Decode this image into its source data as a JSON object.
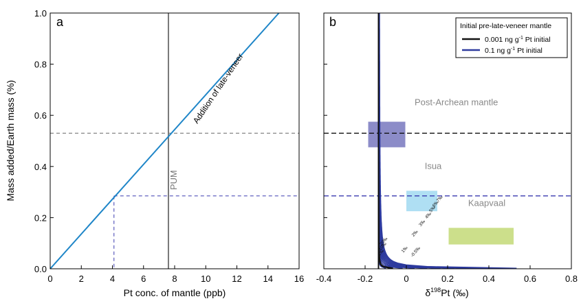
{
  "chart_data": [
    {
      "type": "line",
      "panel_label": "a",
      "xlabel": "Pt conc. of mantle (ppb)",
      "ylabel": "Mass added/Earth mass (%)",
      "xlim": [
        0,
        16
      ],
      "ylim": [
        0,
        1.0
      ],
      "xticks": [
        0,
        2,
        4,
        6,
        8,
        10,
        12,
        14,
        16
      ],
      "yticks": [
        0.0,
        0.2,
        0.4,
        0.6,
        0.8,
        1.0
      ],
      "ytick_labels": [
        "0.0",
        "0.2",
        "0.4",
        "0.6",
        "0.8",
        "1.0"
      ],
      "series": [
        {
          "name": "Addition of late-veneer",
          "color": "#1f86c8",
          "x": [
            0,
            14.7
          ],
          "y": [
            0,
            1.0
          ]
        }
      ],
      "pum": {
        "label": "PUM",
        "x": 7.6,
        "color": "#777777"
      },
      "hlines": [
        {
          "y": 0.53,
          "color": "#666666",
          "style": "dashed"
        },
        {
          "y": 0.285,
          "color": "#3a3ab0",
          "style": "dashed",
          "x_start": 4.1
        }
      ],
      "vlines": [
        {
          "x": 4.1,
          "y_end": 0.285,
          "color": "#3a3ab0",
          "style": "dashed"
        }
      ],
      "annotations": [
        "Addition of late-veneer",
        "PUM"
      ]
    },
    {
      "type": "line",
      "panel_label": "b",
      "xlabel_main": "δ",
      "xlabel_sup": "198",
      "xlabel_rest": "Pt (‰)",
      "xlim": [
        -0.4,
        0.8
      ],
      "ylim": [
        0,
        1.0
      ],
      "xticks": [
        -0.4,
        -0.2,
        0,
        0.2,
        0.4,
        0.6,
        0.8
      ],
      "xtick_labels": [
        "-0.4",
        "-0.2",
        "0",
        "0.2",
        "0.4",
        "0.6",
        "0.8"
      ],
      "legend": {
        "title": "Initial pre-late-veneer mantle",
        "entries": [
          {
            "label_main": "0.001 ng g",
            "label_sup": "-1",
            "label_rest": " Pt initial",
            "color": "#111111"
          },
          {
            "label_main": "0.1 ng g",
            "label_sup": "-1",
            "label_rest": " Pt initial",
            "color": "#2d3a9e"
          }
        ]
      },
      "curve_model": {
        "base": -0.135,
        "k": 0.0095,
        "t0": 0.004
      },
      "blue_curves_t": [
        -0.005,
        0.01,
        0.02,
        0.03,
        0.04,
        0.05,
        0.06,
        0.07,
        0.08,
        0.09
      ],
      "black_curves_t": [
        -0.005,
        0.01,
        0.02
      ],
      "curve_labels": [
        "7‰",
        "6‰",
        "5‰",
        "4‰",
        "3‰",
        "2‰",
        "1‰",
        "-0.5‰",
        "20‰",
        "10‰",
        "1‰"
      ],
      "hlines": [
        {
          "y": 0.53,
          "color": "#111111",
          "style": "dashed"
        },
        {
          "y": 0.285,
          "color": "#3a3ab0",
          "style": "dashed"
        }
      ],
      "boxes": [
        {
          "label": "Post-Archean mantle",
          "x": [
            -0.185,
            -0.005
          ],
          "y": [
            0.475,
            0.575
          ],
          "color": "#7f7fc2",
          "label_color": "#888888"
        },
        {
          "label": "Isua",
          "x": [
            0.0,
            0.15
          ],
          "y": [
            0.225,
            0.305
          ],
          "color": "#a6dcf2",
          "label_color": "#888888"
        },
        {
          "label": "Kaapvaal",
          "x": [
            0.205,
            0.52
          ],
          "y": [
            0.095,
            0.16
          ],
          "color": "#c6dc7e",
          "label_color": "#888888"
        }
      ]
    }
  ]
}
